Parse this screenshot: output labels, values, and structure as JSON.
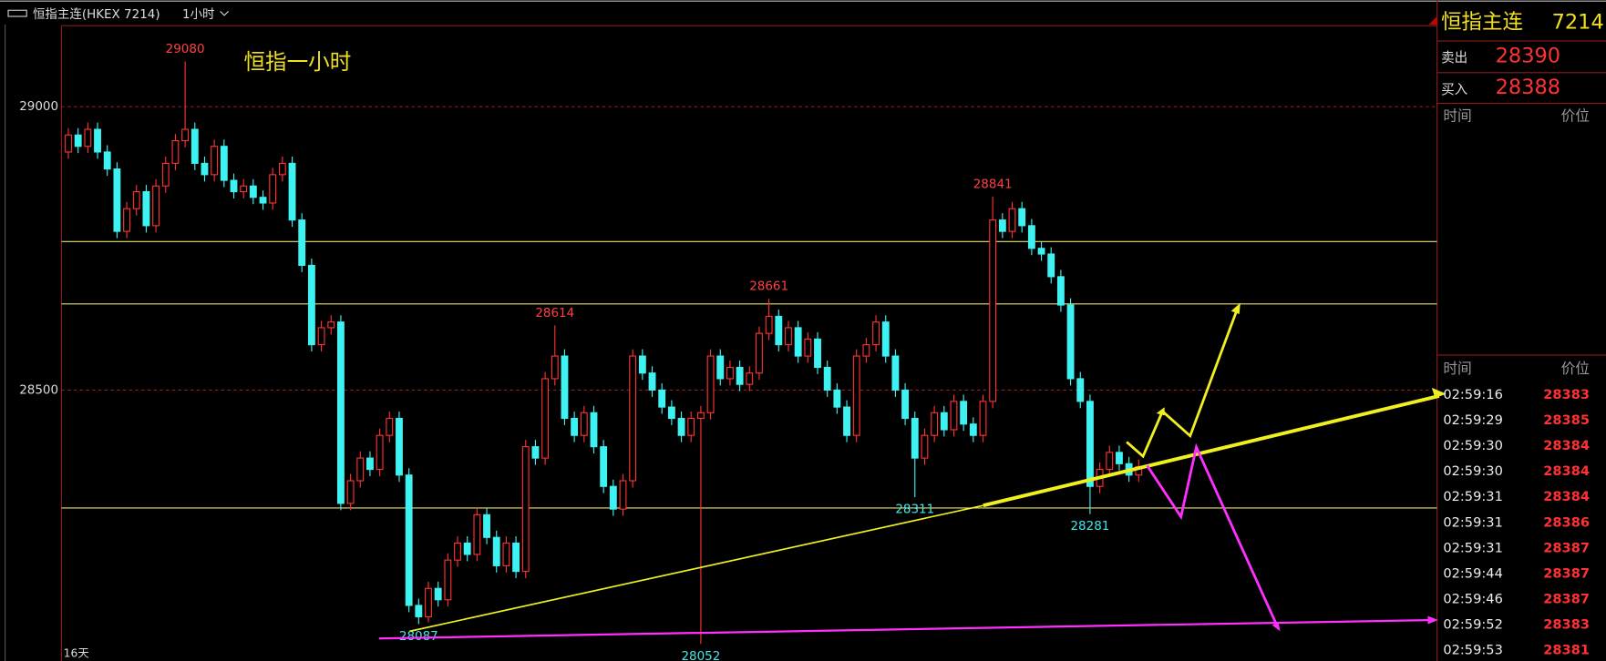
{
  "header": {
    "title": "恒指主连(HKEX 7214)",
    "period": "1小时"
  },
  "chart_data": {
    "type": "candlestick",
    "title": "恒指一小时",
    "open": [
      28920,
      28950,
      28930,
      28960,
      28920,
      28890,
      28780,
      28820,
      28850,
      28790,
      28860,
      28900,
      28940,
      28960,
      28900,
      28880,
      28930,
      28870,
      28850,
      28860,
      28840,
      28830,
      28880,
      28900,
      28800,
      28720,
      28580,
      28610,
      28620,
      28300,
      28340,
      28380,
      28360,
      28420,
      28450,
      28350,
      28120,
      28100,
      28150,
      28130,
      28200,
      28230,
      28210,
      28280,
      28240,
      28190,
      28230,
      28180,
      28400,
      28380,
      28520,
      28560,
      28450,
      28420,
      28460,
      28400,
      28330,
      28290,
      28340,
      28560,
      28530,
      28500,
      28470,
      28450,
      28420,
      28450,
      28460,
      28560,
      28520,
      28540,
      28510,
      28530,
      28600,
      28630,
      28580,
      28610,
      28560,
      28590,
      28540,
      28500,
      28470,
      28420,
      28560,
      28580,
      28620,
      28560,
      28500,
      28450,
      28380,
      28420,
      28460,
      28430,
      28480,
      28440,
      28420,
      28480,
      28800,
      28780,
      28820,
      28790,
      28750,
      28740,
      28700,
      28650,
      28520,
      28480,
      28330,
      28360,
      28390,
      28370,
      28350
    ],
    "high": [
      28962,
      28962,
      28972,
      28972,
      28932,
      28902,
      28832,
      28862,
      28862,
      28872,
      28912,
      28952,
      29080,
      28972,
      28912,
      28942,
      28942,
      28882,
      28872,
      28872,
      28852,
      28892,
      28912,
      28912,
      28812,
      28732,
      28622,
      28632,
      28632,
      28352,
      28392,
      28392,
      28432,
      28462,
      28462,
      28362,
      28132,
      28162,
      28162,
      28212,
      28242,
      28242,
      28292,
      28292,
      28252,
      28242,
      28242,
      28412,
      28412,
      28532,
      28614,
      28572,
      28462,
      28472,
      28472,
      28412,
      28342,
      28352,
      28572,
      28572,
      28542,
      28512,
      28482,
      28462,
      28462,
      28472,
      28572,
      28572,
      28552,
      28552,
      28542,
      28612,
      28661,
      28642,
      28622,
      28622,
      28602,
      28602,
      28552,
      28512,
      28482,
      28572,
      28592,
      28632,
      28632,
      28572,
      28512,
      28462,
      28432,
      28472,
      28472,
      28492,
      28492,
      28452,
      28492,
      28841,
      28812,
      28832,
      28832,
      28802,
      28762,
      28752,
      28712,
      28662,
      28532,
      28492,
      28372,
      28402,
      28402,
      28382,
      28377
    ],
    "low": [
      28908,
      28918,
      28918,
      28908,
      28878,
      28768,
      28768,
      28808,
      28778,
      28778,
      28848,
      28888,
      28928,
      28888,
      28868,
      28868,
      28858,
      28838,
      28838,
      28828,
      28818,
      28818,
      28868,
      28788,
      28708,
      28568,
      28568,
      28598,
      28288,
      28288,
      28328,
      28348,
      28348,
      28408,
      28338,
      28108,
      28087,
      28090,
      28118,
      28118,
      28188,
      28198,
      28198,
      28228,
      28178,
      28178,
      28168,
      28168,
      28368,
      28368,
      28508,
      28438,
      28408,
      28408,
      28388,
      28318,
      28278,
      28278,
      28328,
      28518,
      28488,
      28458,
      28438,
      28408,
      28408,
      28052,
      28448,
      28508,
      28508,
      28498,
      28498,
      28518,
      28588,
      28568,
      28568,
      28548,
      28548,
      28528,
      28488,
      28458,
      28408,
      28408,
      28548,
      28568,
      28548,
      28488,
      28438,
      28311,
      28368,
      28408,
      28418,
      28418,
      28428,
      28408,
      28408,
      28468,
      28768,
      28768,
      28778,
      28738,
      28728,
      28688,
      28638,
      28508,
      28468,
      28281,
      28318,
      28348,
      28358,
      28338,
      28338
    ],
    "close": [
      28950,
      28930,
      28960,
      28920,
      28890,
      28780,
      28820,
      28850,
      28790,
      28860,
      28900,
      28940,
      28960,
      28900,
      28880,
      28930,
      28870,
      28850,
      28860,
      28840,
      28830,
      28880,
      28900,
      28800,
      28720,
      28580,
      28610,
      28620,
      28300,
      28340,
      28380,
      28360,
      28420,
      28450,
      28350,
      28120,
      28100,
      28150,
      28130,
      28200,
      28230,
      28210,
      28280,
      28240,
      28190,
      28230,
      28180,
      28400,
      28380,
      28520,
      28560,
      28450,
      28420,
      28460,
      28400,
      28330,
      28290,
      28340,
      28560,
      28530,
      28500,
      28470,
      28450,
      28420,
      28450,
      28460,
      28560,
      28520,
      28540,
      28510,
      28530,
      28600,
      28630,
      28580,
      28610,
      28560,
      28590,
      28540,
      28500,
      28470,
      28420,
      28560,
      28580,
      28620,
      28560,
      28500,
      28450,
      28380,
      28420,
      28460,
      28430,
      28480,
      28440,
      28420,
      28480,
      28800,
      28780,
      28820,
      28790,
      28750,
      28740,
      28700,
      28650,
      28520,
      28480,
      28330,
      28360,
      28390,
      28370,
      28350,
      28365
    ],
    "ylim": [
      28022,
      29143
    ],
    "yticks": [
      28500,
      29000
    ],
    "grid": true,
    "levels": [
      28762,
      28652,
      28292
    ],
    "high_annotations": [
      29080,
      28614,
      28661,
      28841
    ],
    "low_annotations": [
      28087,
      28052,
      28311,
      28281
    ],
    "up_color": "#ff3232",
    "down_color": "#3ff2f2",
    "level_color": "#e8e070",
    "span_label": "16天"
  },
  "quote": {
    "name": "恒指主连",
    "code": "7214",
    "sell_label": "卖出",
    "sell": 28390,
    "buy_label": "买入",
    "buy": 28388
  },
  "trades": {
    "time_header": "时间",
    "price_header": "价位",
    "rows": [
      [
        "02:59:16",
        28383
      ],
      [
        "02:59:29",
        28385
      ],
      [
        "02:59:30",
        28384
      ],
      [
        "02:59:30",
        28384
      ],
      [
        "02:59:31",
        28384
      ],
      [
        "02:59:31",
        28386
      ],
      [
        "02:59:31",
        28387
      ],
      [
        "02:59:44",
        28387
      ],
      [
        "02:59:46",
        28387
      ],
      [
        "02:59:52",
        28383
      ],
      [
        "02:59:53",
        28381
      ]
    ]
  }
}
